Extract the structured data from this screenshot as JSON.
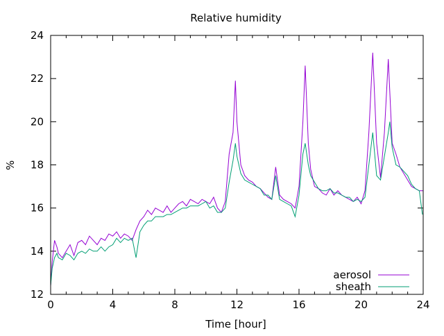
{
  "chart_data": {
    "type": "line",
    "title": "Relative humidity",
    "xlabel": "Time [hour]",
    "ylabel": "%",
    "xlim": [
      0,
      24
    ],
    "ylim": [
      12,
      24
    ],
    "xticks": [
      0,
      4,
      8,
      12,
      16,
      20,
      24
    ],
    "yticks": [
      12,
      14,
      16,
      18,
      20,
      22,
      24
    ],
    "grid": false,
    "legend_position": "bottom-right",
    "series": [
      {
        "name": "aerosol",
        "color": "#9400d3",
        "x": [
          0,
          0.1,
          0.25,
          0.4,
          0.5,
          0.75,
          1,
          1.25,
          1.5,
          1.75,
          2,
          2.25,
          2.5,
          2.75,
          3,
          3.25,
          3.5,
          3.75,
          4,
          4.25,
          4.5,
          4.75,
          5,
          5.25,
          5.5,
          5.75,
          6,
          6.25,
          6.5,
          6.75,
          7,
          7.25,
          7.5,
          7.75,
          8,
          8.25,
          8.5,
          8.75,
          9,
          9.25,
          9.5,
          9.75,
          10,
          10.25,
          10.5,
          10.75,
          11,
          11.25,
          11.5,
          11.75,
          11.9,
          12,
          12.25,
          12.5,
          12.75,
          13,
          13.25,
          13.5,
          13.75,
          14,
          14.25,
          14.5,
          14.75,
          15,
          15.25,
          15.5,
          15.75,
          16,
          16.25,
          16.4,
          16.6,
          16.75,
          17,
          17.25,
          17.5,
          17.75,
          18,
          18.25,
          18.5,
          18.75,
          19,
          19.25,
          19.5,
          19.75,
          20,
          20.25,
          20.5,
          20.75,
          21,
          21.25,
          21.5,
          21.75,
          22,
          22.25,
          22.5,
          22.75,
          23,
          23.25,
          23.5,
          23.75,
          24
        ],
        "y": [
          12.4,
          13.5,
          14.5,
          14.2,
          13.9,
          13.7,
          14.0,
          14.3,
          13.8,
          14.4,
          14.5,
          14.3,
          14.7,
          14.5,
          14.3,
          14.6,
          14.5,
          14.8,
          14.7,
          14.9,
          14.6,
          14.8,
          14.7,
          14.5,
          15.0,
          15.4,
          15.6,
          15.9,
          15.7,
          16.0,
          15.9,
          15.8,
          16.1,
          15.8,
          16.0,
          16.2,
          16.3,
          16.1,
          16.4,
          16.3,
          16.2,
          16.4,
          16.3,
          16.2,
          16.5,
          16.0,
          15.8,
          16.3,
          18.5,
          19.5,
          21.9,
          20.0,
          18.0,
          17.5,
          17.3,
          17.2,
          17.0,
          16.9,
          16.7,
          16.5,
          16.4,
          17.9,
          16.6,
          16.4,
          16.3,
          16.2,
          16.0,
          17.0,
          20.0,
          22.6,
          19.0,
          17.8,
          17.0,
          16.9,
          16.7,
          16.6,
          16.9,
          16.6,
          16.8,
          16.6,
          16.5,
          16.4,
          16.3,
          16.5,
          16.2,
          16.8,
          19.5,
          23.2,
          19.0,
          17.4,
          19.5,
          22.9,
          19.0,
          18.5,
          17.9,
          17.6,
          17.3,
          17.0,
          16.9,
          16.8,
          16.8
        ]
      },
      {
        "name": "sheath",
        "color": "#009e73",
        "x": [
          0,
          0.1,
          0.25,
          0.4,
          0.5,
          0.75,
          1,
          1.25,
          1.5,
          1.75,
          2,
          2.25,
          2.5,
          2.75,
          3,
          3.25,
          3.5,
          3.75,
          4,
          4.25,
          4.5,
          4.75,
          5,
          5.25,
          5.5,
          5.75,
          6,
          6.25,
          6.5,
          6.75,
          7,
          7.25,
          7.5,
          7.75,
          8,
          8.25,
          8.5,
          8.75,
          9,
          9.25,
          9.5,
          9.75,
          10,
          10.25,
          10.5,
          10.75,
          11,
          11.25,
          11.5,
          11.75,
          11.9,
          12,
          12.25,
          12.5,
          12.75,
          13,
          13.25,
          13.5,
          13.75,
          14,
          14.25,
          14.5,
          14.75,
          15,
          15.25,
          15.5,
          15.75,
          16,
          16.25,
          16.4,
          16.6,
          16.75,
          17,
          17.25,
          17.5,
          17.75,
          18,
          18.25,
          18.5,
          18.75,
          19,
          19.25,
          19.5,
          19.75,
          20,
          20.25,
          20.5,
          20.75,
          21,
          21.25,
          21.5,
          21.75,
          21.85,
          22,
          22.25,
          22.5,
          22.75,
          23,
          23.25,
          23.5,
          23.75,
          23.95
        ],
        "y": [
          12.4,
          13.2,
          13.7,
          13.9,
          13.7,
          13.6,
          13.9,
          13.8,
          13.6,
          13.9,
          14.0,
          13.9,
          14.1,
          14.0,
          14.0,
          14.2,
          14.0,
          14.2,
          14.3,
          14.6,
          14.4,
          14.6,
          14.5,
          14.6,
          13.7,
          14.9,
          15.2,
          15.4,
          15.4,
          15.6,
          15.6,
          15.6,
          15.7,
          15.7,
          15.8,
          15.9,
          16.0,
          16.0,
          16.1,
          16.1,
          16.1,
          16.2,
          16.3,
          16.0,
          16.1,
          15.8,
          15.8,
          16.0,
          17.2,
          18.2,
          19.0,
          18.4,
          17.6,
          17.3,
          17.2,
          17.1,
          17.0,
          16.9,
          16.6,
          16.6,
          16.4,
          17.5,
          16.4,
          16.3,
          16.2,
          16.1,
          15.6,
          16.6,
          18.5,
          19.0,
          18.0,
          17.5,
          17.2,
          16.9,
          16.8,
          16.8,
          16.9,
          16.7,
          16.7,
          16.6,
          16.5,
          16.5,
          16.3,
          16.4,
          16.3,
          16.5,
          18.0,
          19.5,
          17.5,
          17.3,
          18.4,
          19.5,
          20.0,
          18.8,
          18.0,
          17.9,
          17.7,
          17.5,
          17.1,
          16.9,
          16.8,
          15.7
        ]
      }
    ]
  }
}
